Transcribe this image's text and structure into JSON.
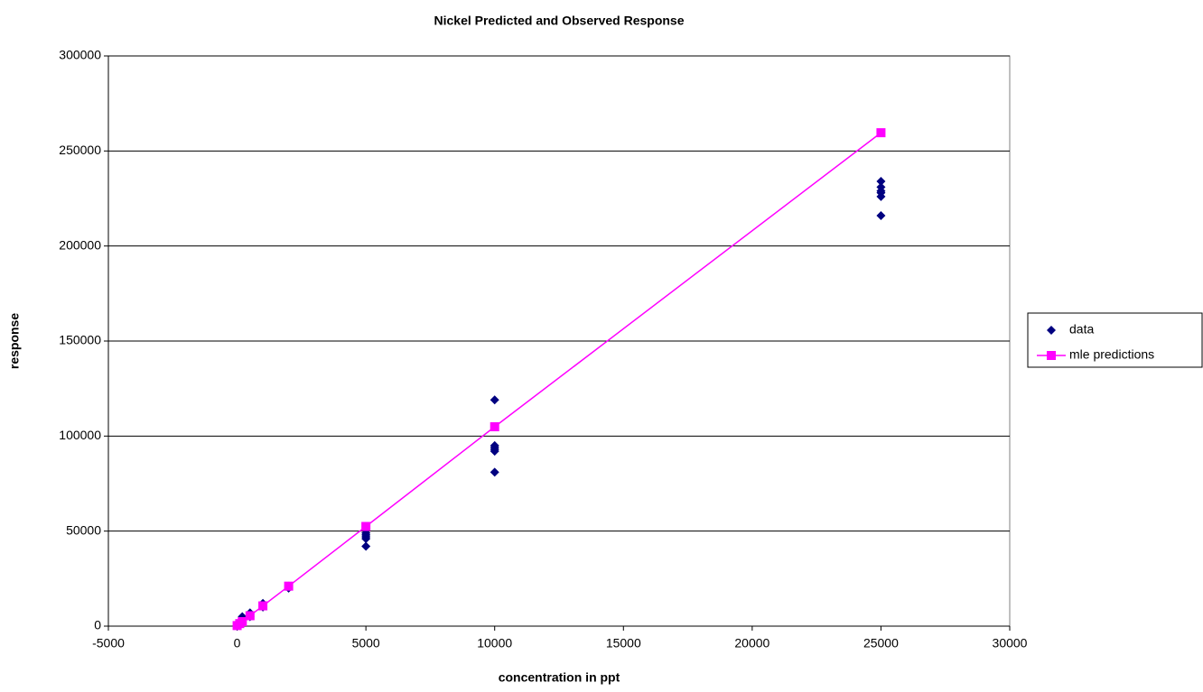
{
  "chart_data": {
    "type": "scatter",
    "title": "Nickel Predicted and Observed Response",
    "x_label": "concentration in ppt",
    "y_label": "response",
    "xlim": [
      -5000,
      30000
    ],
    "xticks": [
      -5000,
      0,
      5000,
      10000,
      15000,
      20000,
      25000,
      30000
    ],
    "ylim": [
      0,
      300000
    ],
    "yticks": [
      0,
      50000,
      100000,
      150000,
      200000,
      250000,
      300000
    ],
    "grid": "y",
    "legend": "right",
    "series": [
      {
        "name": "data",
        "color": "#000080",
        "marker": "diamond",
        "line": false,
        "x": [
          0,
          0,
          100,
          100,
          200,
          200,
          200,
          500,
          500,
          500,
          1000,
          1000,
          1000,
          2000,
          2000,
          5000,
          5000,
          5000,
          5000,
          5000,
          10000,
          10000,
          10000,
          10000,
          10000,
          10000,
          25000,
          25000,
          25000,
          25000,
          25000,
          25000
        ],
        "values": [
          0,
          500,
          1000,
          2000,
          2000,
          3000,
          5000,
          5000,
          6000,
          7000,
          10000,
          11000,
          12000,
          20000,
          21000,
          49000,
          48000,
          47000,
          46000,
          42000,
          119000,
          95000,
          94000,
          93000,
          92000,
          81000,
          234000,
          231000,
          229000,
          228000,
          226000,
          216000
        ]
      },
      {
        "name": "mle predictions",
        "color": "#FF00FF",
        "marker": "square",
        "line": true,
        "x": [
          0,
          100,
          200,
          500,
          1000,
          2000,
          5000,
          10000,
          25000
        ],
        "values": [
          300,
          1340,
          2370,
          5480,
          10670,
          21040,
          52450,
          104900,
          259600
        ]
      }
    ]
  }
}
